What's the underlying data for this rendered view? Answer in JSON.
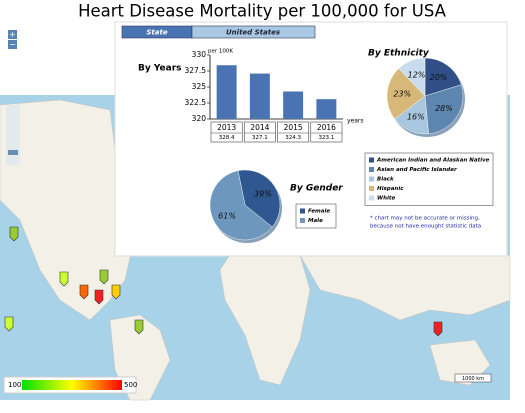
{
  "title": "Heart Disease Mortality per 100,000 for USA",
  "tabs": [
    "State",
    "United States"
  ],
  "zoom": [
    "+",
    "−"
  ],
  "by_years": {
    "type": "bar",
    "title": "By Years",
    "unit": "per 100K",
    "x_label": "years",
    "color": "#4a73b4",
    "categories": [
      "2013",
      "2014",
      "2015",
      "2016"
    ],
    "values": [
      328.4,
      327.1,
      324.3,
      323.1
    ],
    "ylim": [
      320,
      330
    ],
    "yticks": [
      320,
      322.5,
      325,
      327.5,
      330
    ]
  },
  "by_ethnicity": {
    "type": "pie",
    "title": "By Ethnicity",
    "categories": [
      "American Indian and Alaskan Native",
      "Asian and Pacific Islander",
      "Black",
      "Hispanic",
      "White"
    ],
    "values": [
      20,
      28,
      16,
      23,
      12
    ],
    "value_labels": [
      "20%",
      "28%",
      "16%",
      "23%",
      "12%"
    ],
    "colors": [
      "#2f4f86",
      "#5d86b0",
      "#a9c6df",
      "#d8b878",
      "#c9dced"
    ]
  },
  "by_gender": {
    "type": "pie",
    "title": "By Gender",
    "categories": [
      "Female",
      "Male"
    ],
    "values": [
      39,
      61
    ],
    "value_labels": [
      "39%",
      "61%"
    ],
    "colors": [
      "#2f5790",
      "#6d97bd"
    ]
  },
  "note": [
    "* chart may not be accurate or missing,",
    "because not have enought statistic data"
  ],
  "color_scale": {
    "min_label": "100",
    "max_label": "500"
  },
  "map_scale": "1000 km"
}
